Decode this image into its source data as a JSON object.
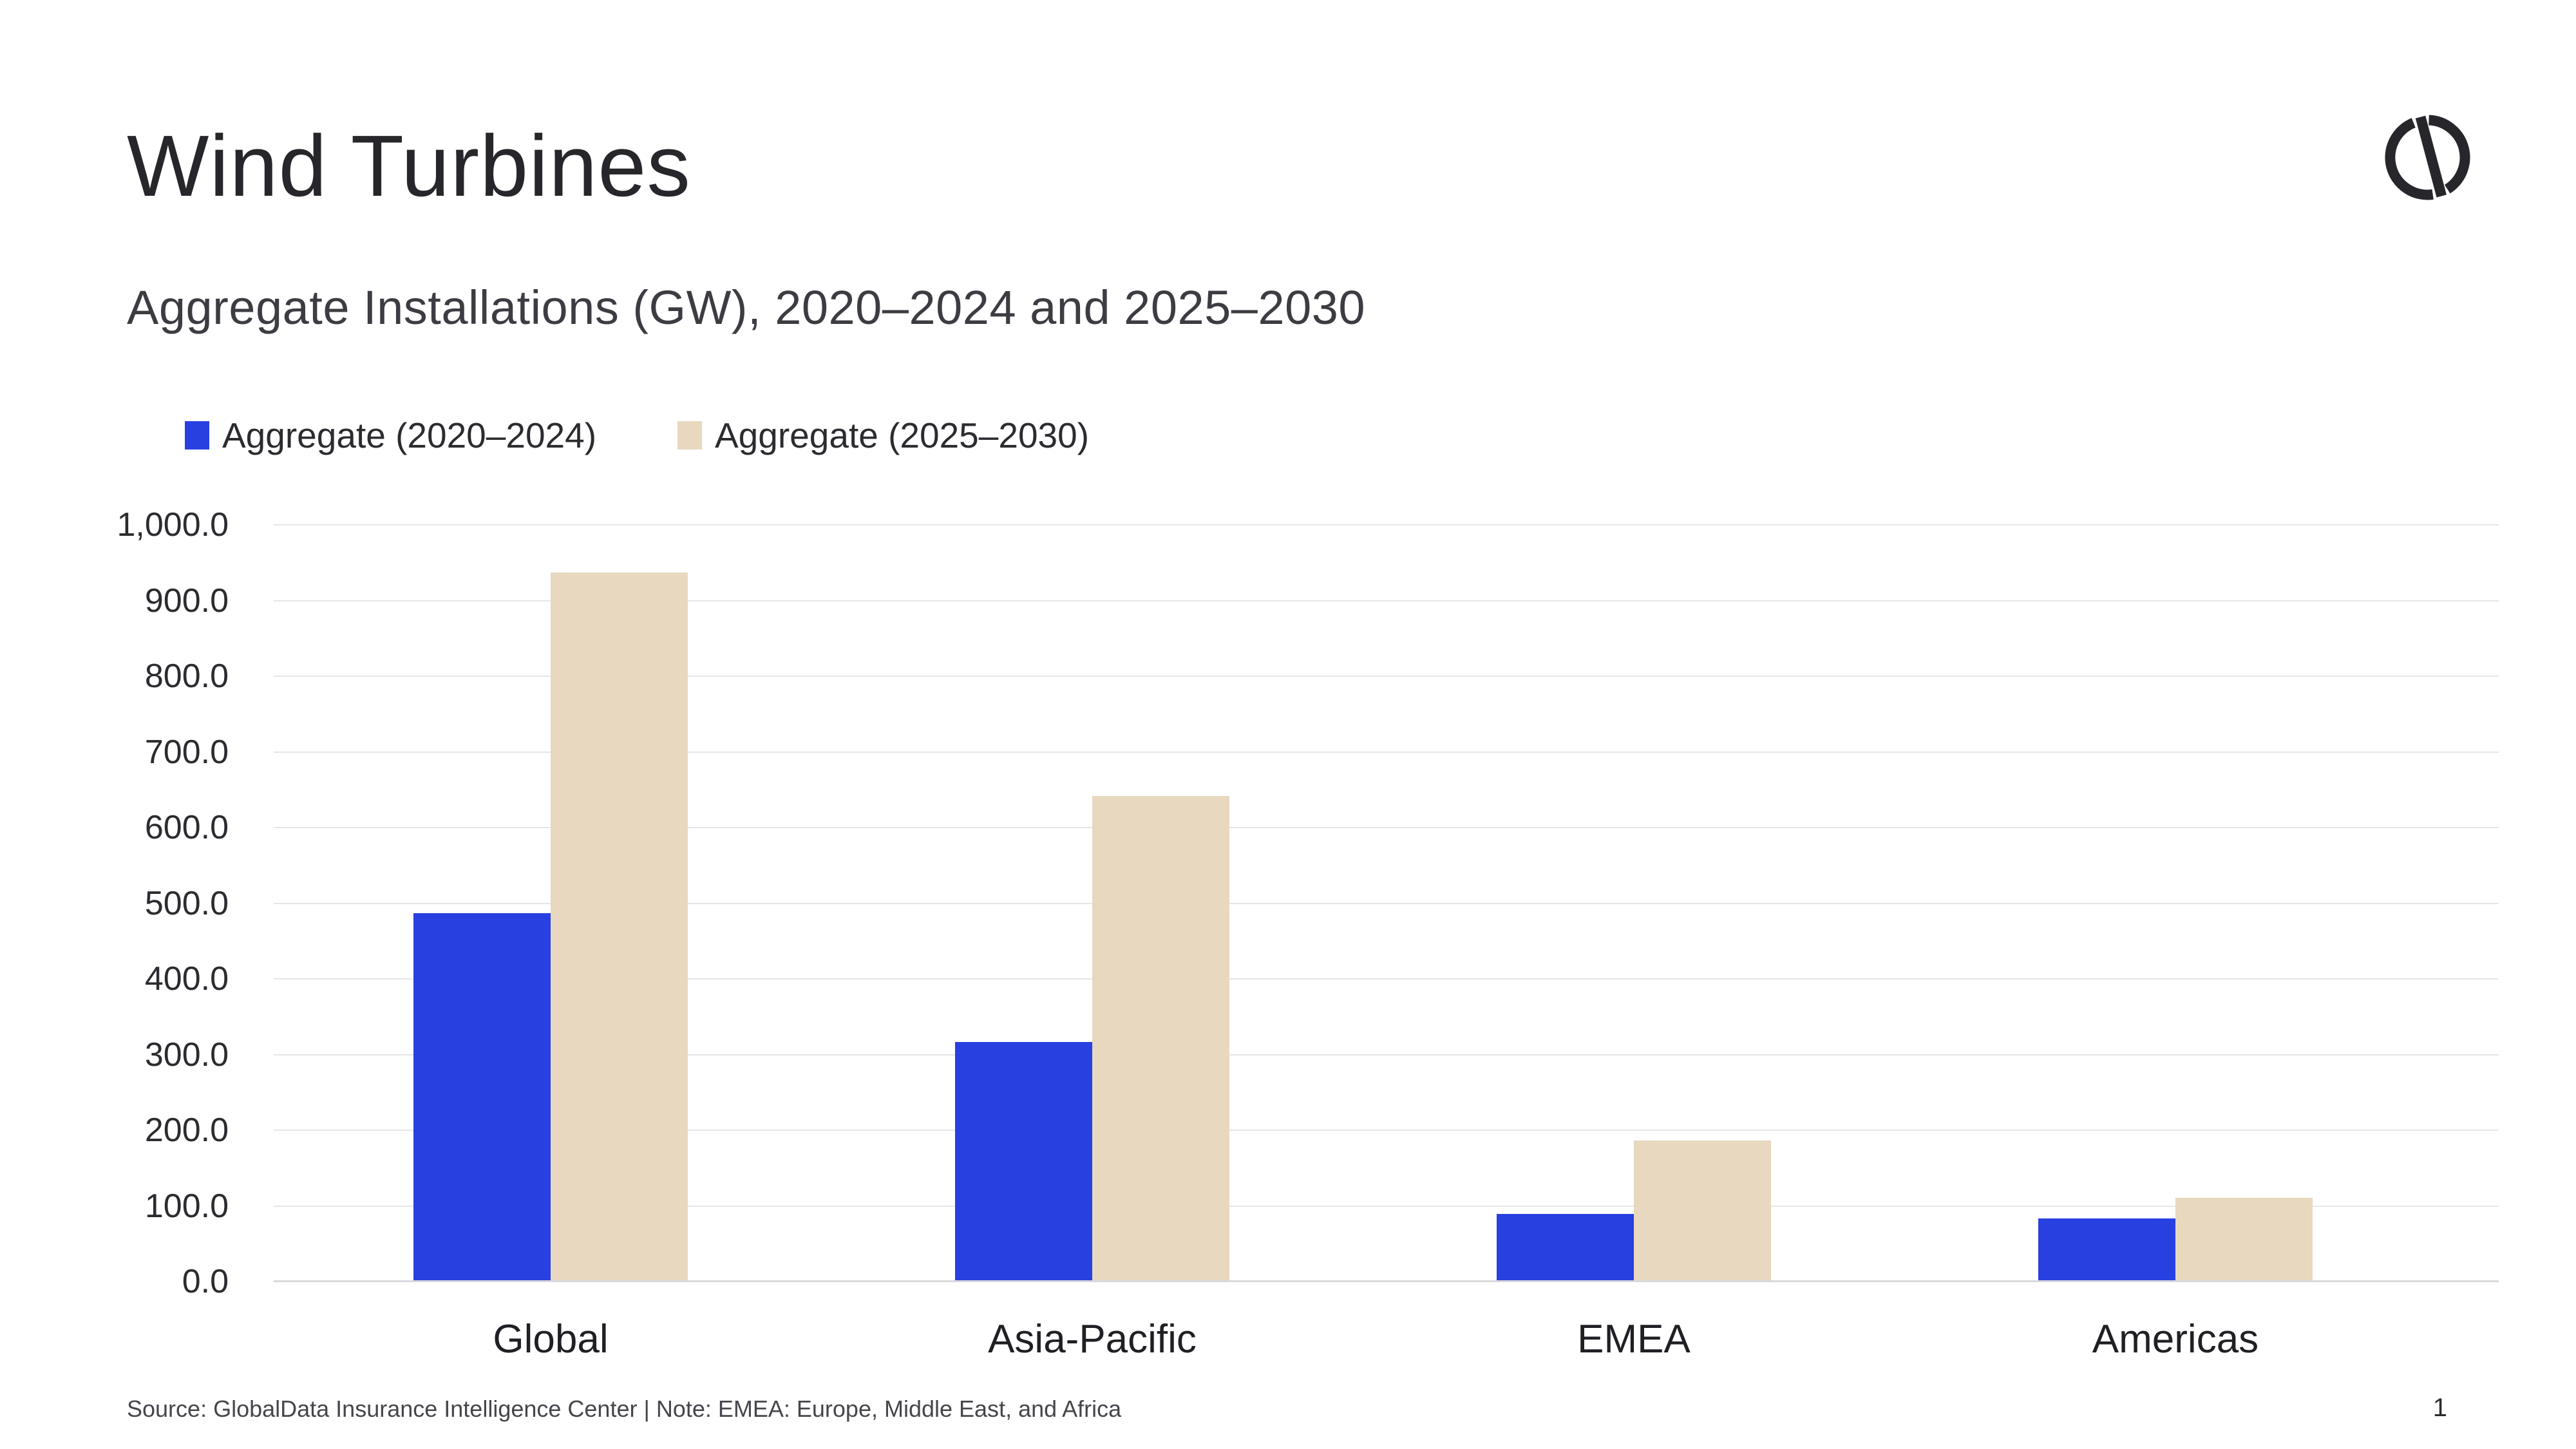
{
  "page": {
    "title": "Wind Turbines",
    "subtitle": "Aggregate Installations (GW), 2020–2024 and 2025–2030",
    "footer": "Source: GlobalData Insurance Intelligence Center | Note: EMEA: Europe, Middle East, and Africa",
    "page_number": "1"
  },
  "colors": {
    "series1": "#2840e0",
    "series2": "#e8d8c0",
    "gridline": "#e6e6e9",
    "axis_line": "#d9d9dd",
    "title_text": "#26262b",
    "logo_stroke": "#26262b"
  },
  "legend": [
    {
      "label": "Aggregate (2020–2024)",
      "color": "#2840e0"
    },
    {
      "label": "Aggregate (2025–2030)",
      "color": "#e8d8c0"
    }
  ],
  "chart_data": {
    "type": "bar",
    "title": "Aggregate Installations (GW), 2020–2024 and 2025–2030",
    "categories": [
      "Global",
      "Asia-Pacific",
      "EMEA",
      "Americas"
    ],
    "series": [
      {
        "name": "Aggregate (2020–2024)",
        "color": "#2840e0",
        "values": [
          485,
          315,
          88,
          82
        ]
      },
      {
        "name": "Aggregate (2025–2030)",
        "color": "#e8d8c0",
        "values": [
          935,
          640,
          185,
          109
        ]
      }
    ],
    "ylabel": "GW",
    "ylim": [
      0,
      1000
    ],
    "ytick_step": 100,
    "ytick_labels": [
      "0.0",
      "100.0",
      "200.0",
      "300.0",
      "400.0",
      "500.0",
      "600.0",
      "700.0",
      "800.0",
      "900.0",
      "1,000.0"
    ],
    "grid": true,
    "legend_position": "top-left"
  }
}
